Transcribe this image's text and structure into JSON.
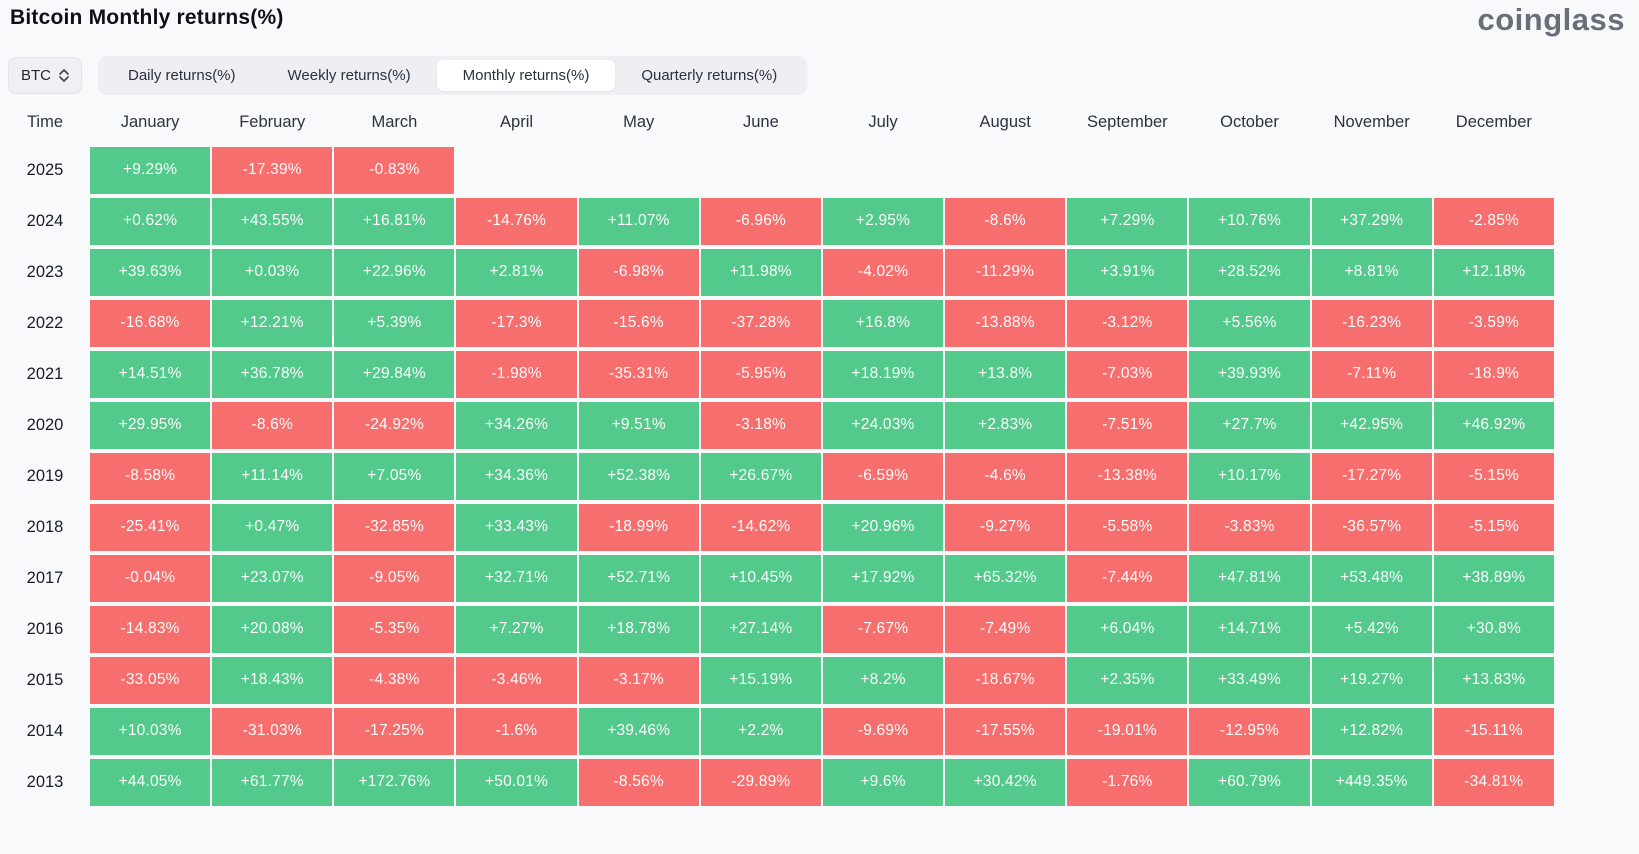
{
  "header": {
    "title": "Bitcoin Monthly returns(%)",
    "logo_text": "coinglass"
  },
  "controls": {
    "symbol": "BTC",
    "tabs": [
      {
        "label": "Daily returns(%)",
        "active": false
      },
      {
        "label": "Weekly returns(%)",
        "active": false
      },
      {
        "label": "Monthly returns(%)",
        "active": true
      },
      {
        "label": "Quarterly returns(%)",
        "active": false
      }
    ]
  },
  "colors": {
    "positive": "#53c98b",
    "negative": "#f66e6e"
  },
  "chart_data": {
    "type": "heatmap",
    "title": "Bitcoin Monthly returns(%)",
    "columns": [
      "Time",
      "January",
      "February",
      "March",
      "April",
      "May",
      "June",
      "July",
      "August",
      "September",
      "October",
      "November",
      "December"
    ],
    "rows": [
      {
        "year": "2025",
        "values": [
          "+9.29%",
          "-17.39%",
          "-0.83%",
          "",
          "",
          "",
          "",
          "",
          "",
          "",
          "",
          ""
        ]
      },
      {
        "year": "2024",
        "values": [
          "+0.62%",
          "+43.55%",
          "+16.81%",
          "-14.76%",
          "+11.07%",
          "-6.96%",
          "+2.95%",
          "-8.6%",
          "+7.29%",
          "+10.76%",
          "+37.29%",
          "-2.85%"
        ]
      },
      {
        "year": "2023",
        "values": [
          "+39.63%",
          "+0.03%",
          "+22.96%",
          "+2.81%",
          "-6.98%",
          "+11.98%",
          "-4.02%",
          "-11.29%",
          "+3.91%",
          "+28.52%",
          "+8.81%",
          "+12.18%"
        ]
      },
      {
        "year": "2022",
        "values": [
          "-16.68%",
          "+12.21%",
          "+5.39%",
          "-17.3%",
          "-15.6%",
          "-37.28%",
          "+16.8%",
          "-13.88%",
          "-3.12%",
          "+5.56%",
          "-16.23%",
          "-3.59%"
        ]
      },
      {
        "year": "2021",
        "values": [
          "+14.51%",
          "+36.78%",
          "+29.84%",
          "-1.98%",
          "-35.31%",
          "-5.95%",
          "+18.19%",
          "+13.8%",
          "-7.03%",
          "+39.93%",
          "-7.11%",
          "-18.9%"
        ]
      },
      {
        "year": "2020",
        "values": [
          "+29.95%",
          "-8.6%",
          "-24.92%",
          "+34.26%",
          "+9.51%",
          "-3.18%",
          "+24.03%",
          "+2.83%",
          "-7.51%",
          "+27.7%",
          "+42.95%",
          "+46.92%"
        ]
      },
      {
        "year": "2019",
        "values": [
          "-8.58%",
          "+11.14%",
          "+7.05%",
          "+34.36%",
          "+52.38%",
          "+26.67%",
          "-6.59%",
          "-4.6%",
          "-13.38%",
          "+10.17%",
          "-17.27%",
          "-5.15%"
        ]
      },
      {
        "year": "2018",
        "values": [
          "-25.41%",
          "+0.47%",
          "-32.85%",
          "+33.43%",
          "-18.99%",
          "-14.62%",
          "+20.96%",
          "-9.27%",
          "-5.58%",
          "-3.83%",
          "-36.57%",
          "-5.15%"
        ]
      },
      {
        "year": "2017",
        "values": [
          "-0.04%",
          "+23.07%",
          "-9.05%",
          "+32.71%",
          "+52.71%",
          "+10.45%",
          "+17.92%",
          "+65.32%",
          "-7.44%",
          "+47.81%",
          "+53.48%",
          "+38.89%"
        ]
      },
      {
        "year": "2016",
        "values": [
          "-14.83%",
          "+20.08%",
          "-5.35%",
          "+7.27%",
          "+18.78%",
          "+27.14%",
          "-7.67%",
          "-7.49%",
          "+6.04%",
          "+14.71%",
          "+5.42%",
          "+30.8%"
        ]
      },
      {
        "year": "2015",
        "values": [
          "-33.05%",
          "+18.43%",
          "-4.38%",
          "-3.46%",
          "-3.17%",
          "+15.19%",
          "+8.2%",
          "-18.67%",
          "+2.35%",
          "+33.49%",
          "+19.27%",
          "+13.83%"
        ]
      },
      {
        "year": "2014",
        "values": [
          "+10.03%",
          "-31.03%",
          "-17.25%",
          "-1.6%",
          "+39.46%",
          "+2.2%",
          "-9.69%",
          "-17.55%",
          "-19.01%",
          "-12.95%",
          "+12.82%",
          "-15.11%"
        ]
      },
      {
        "year": "2013",
        "values": [
          "+44.05%",
          "+61.77%",
          "+172.76%",
          "+50.01%",
          "-8.56%",
          "-29.89%",
          "+9.6%",
          "+30.42%",
          "-1.76%",
          "+60.79%",
          "+449.35%",
          "-34.81%"
        ]
      }
    ]
  }
}
